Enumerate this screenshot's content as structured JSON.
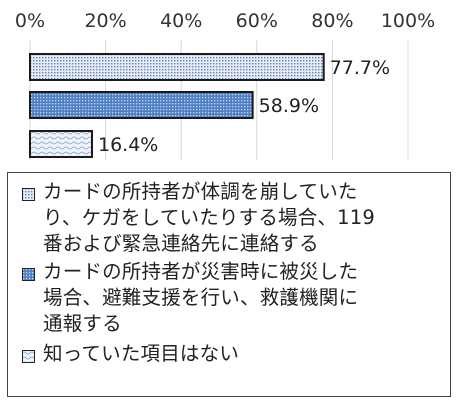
{
  "chart_data": {
    "type": "bar",
    "orientation": "horizontal",
    "x_axis": {
      "range": [
        0,
        100
      ],
      "ticks": [
        0,
        20,
        40,
        60,
        80,
        100
      ],
      "tick_labels": [
        "0%",
        "20%",
        "40%",
        "60%",
        "80%",
        "100%"
      ],
      "position": "top"
    },
    "grid": true,
    "legend_position": "bottom",
    "series": [
      {
        "name": "カードの所持者が体調を崩していたり、ケガをしていたりする場合、119番および緊急連絡先に連絡する",
        "value": 77.7,
        "value_label": "77.7%",
        "pattern": "fine-dots",
        "color": "#d0dcee"
      },
      {
        "name": "カードの所持者が災害時に被災した場合、避難支援を行い、救護機関に通報する",
        "value": 58.9,
        "value_label": "58.9%",
        "pattern": "dense-dots",
        "color": "#5f88c8"
      },
      {
        "name": "知っていた項目はない",
        "value": 16.4,
        "value_label": "16.4%",
        "pattern": "waves",
        "color": "#d9e4f3"
      }
    ]
  },
  "legend": {
    "items": [
      {
        "label": "カードの所持者が体調を崩していた\nり、ケガをしていたりする場合、119\n番および緊急連絡先に連絡する"
      },
      {
        "label": "カードの所持者が災害時に被災した\n場合、避難支援を行い、救護機関に\n通報する"
      },
      {
        "label": "知っていた項目はない"
      }
    ]
  }
}
